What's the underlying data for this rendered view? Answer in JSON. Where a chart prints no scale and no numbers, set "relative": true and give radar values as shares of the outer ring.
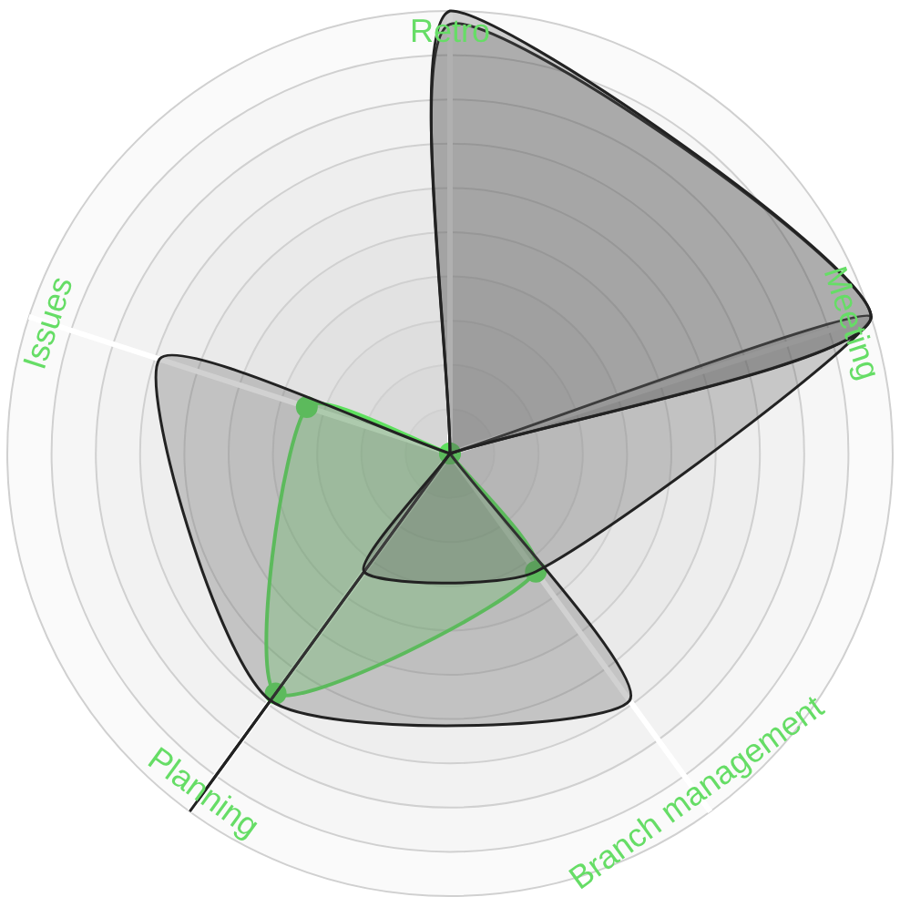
{
  "chart_data": {
    "type": "radar",
    "relative": true,
    "grid": true,
    "legend": false,
    "categories": [
      "Retro",
      "Meeting",
      "Branch management",
      "Planning",
      "Issues"
    ],
    "series": [
      {
        "color": "#222222",
        "marker": "none",
        "values": [
          1,
          1,
          0,
          0,
          0
        ]
      },
      {
        "color": "#222222",
        "marker": "none",
        "values": [
          0.97,
          1,
          0,
          0,
          0
        ]
      },
      {
        "color": "#222222",
        "marker": "none",
        "values": [
          0,
          1,
          0.33,
          0.33,
          0
        ]
      },
      {
        "color": "#222222",
        "marker": "none",
        "values": [
          0,
          0,
          0.69,
          0.69,
          0.69
        ]
      },
      {
        "color": "#222222",
        "marker": "none",
        "values": [
          0,
          0,
          0,
          1,
          0
        ]
      },
      {
        "color": "#222222",
        "marker": "none",
        "values": [
          0,
          0,
          0,
          0.97,
          0
        ]
      },
      {
        "color": "#5ee05e",
        "marker": "circle",
        "values": [
          0,
          0,
          0.33,
          0.67,
          0.34
        ]
      }
    ]
  }
}
